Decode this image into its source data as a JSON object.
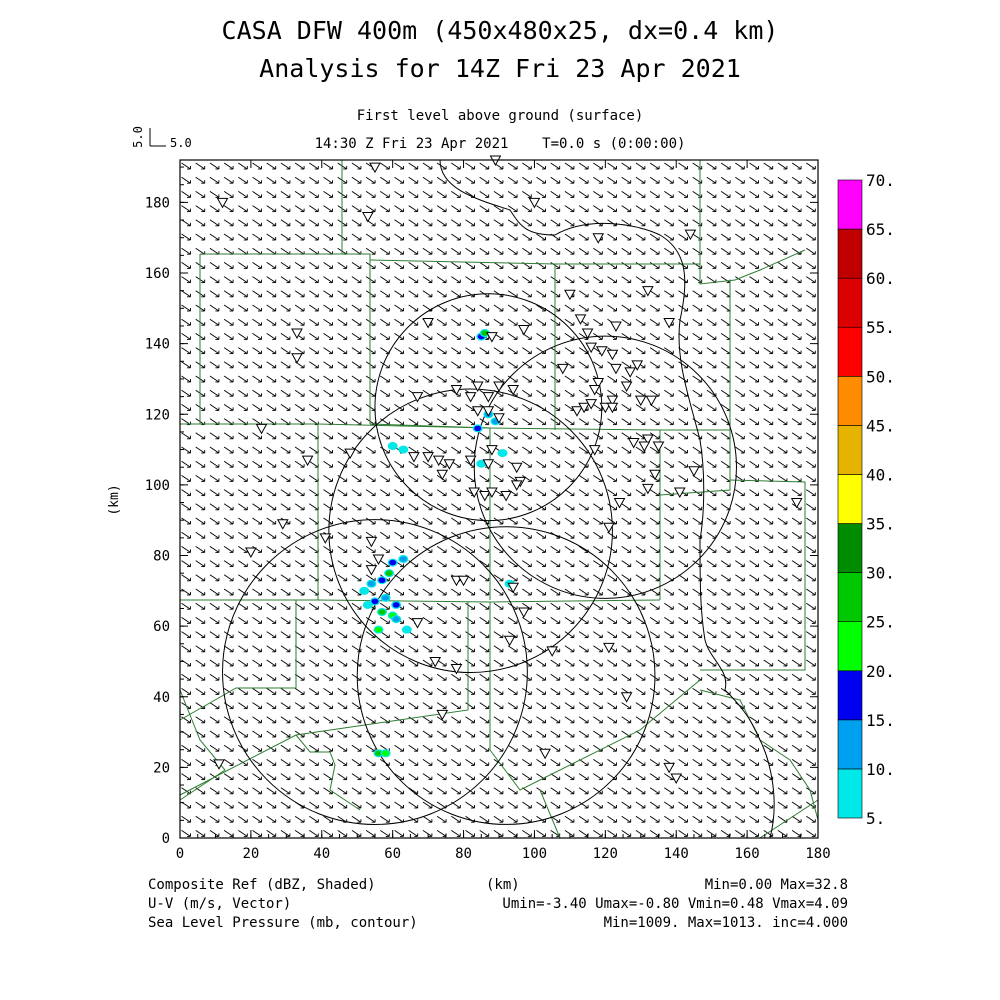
{
  "title": {
    "line1": "CASA DFW 400m (450x480x25, dx=0.4 km)",
    "line2": "Analysis for 14Z Fri 23 Apr 2021",
    "level": "First level above ground (surface)",
    "time": "14:30 Z Fri 23 Apr 2021    T=0.0 s (0:00:00)"
  },
  "vector_scale": {
    "vertical": "5.0",
    "horizontal": "5.0"
  },
  "axes": {
    "x_label": "(km)",
    "y_label": "(km)",
    "x_ticks": [
      "0",
      "20",
      "40",
      "60",
      "80",
      "100",
      "120",
      "140",
      "160",
      "180"
    ],
    "y_ticks": [
      "0",
      "20",
      "40",
      "60",
      "80",
      "100",
      "120",
      "140",
      "160",
      "180"
    ],
    "x_range": [
      0,
      180
    ],
    "y_range": [
      0,
      192
    ]
  },
  "colorbar": {
    "labels": [
      "5.",
      "10.",
      "15.",
      "20.",
      "25.",
      "30.",
      "35.",
      "40.",
      "45.",
      "50.",
      "55.",
      "60.",
      "65.",
      "70."
    ],
    "colors": [
      "#00e8e8",
      "#00a0f0",
      "#0000f0",
      "#00ff00",
      "#00c800",
      "#008c00",
      "#ffff00",
      "#e6b400",
      "#ff8c00",
      "#ff0000",
      "#dc0000",
      "#c00000",
      "#b40000",
      "#ff00ff"
    ]
  },
  "footer": {
    "ref_label": "Composite Ref (dBZ, Shaded)",
    "ref_stats": "Min=0.00 Max=32.8",
    "km_label": "(km)",
    "uv_label": "U-V (m/s, Vector)",
    "uv_stats": "Umin=-3.40 Umax=-0.80 Vmin=0.48 Vmax=4.09",
    "slp_label": "Sea Level Pressure (mb, contour)",
    "slp_stats": "Min=1009. Max=1013. inc=4.000"
  },
  "range_rings": [
    {
      "cx": 87,
      "cy": 122,
      "r": 32
    },
    {
      "cx": 120,
      "cy": 105,
      "r": 37
    },
    {
      "cx": 82,
      "cy": 87,
      "r": 40
    },
    {
      "cx": 55,
      "cy": 47,
      "r": 43
    },
    {
      "cx": 92,
      "cy": 46,
      "r": 42
    }
  ],
  "stations": [
    [
      12,
      180
    ],
    [
      55,
      190
    ],
    [
      89,
      192
    ],
    [
      100,
      180
    ],
    [
      53,
      176
    ],
    [
      118,
      170
    ],
    [
      144,
      171
    ],
    [
      33,
      143
    ],
    [
      33,
      136
    ],
    [
      70,
      146
    ],
    [
      88,
      142
    ],
    [
      97,
      144
    ],
    [
      115,
      143
    ],
    [
      108,
      133
    ],
    [
      110,
      154
    ],
    [
      132,
      155
    ],
    [
      138,
      146
    ],
    [
      123,
      145
    ],
    [
      113,
      147
    ],
    [
      116,
      139
    ],
    [
      119,
      138
    ],
    [
      122,
      137
    ],
    [
      123,
      133
    ],
    [
      127,
      132
    ],
    [
      129,
      134
    ],
    [
      118,
      129
    ],
    [
      117,
      127
    ],
    [
      126,
      128
    ],
    [
      122,
      124
    ],
    [
      130,
      124
    ],
    [
      133,
      124
    ],
    [
      112,
      121
    ],
    [
      114,
      122
    ],
    [
      116,
      123
    ],
    [
      120,
      122
    ],
    [
      122,
      122
    ],
    [
      84,
      128
    ],
    [
      90,
      128
    ],
    [
      87,
      125
    ],
    [
      82,
      125
    ],
    [
      78,
      127
    ],
    [
      94,
      127
    ],
    [
      84,
      121
    ],
    [
      87,
      121
    ],
    [
      90,
      119
    ],
    [
      67,
      125
    ],
    [
      88,
      110
    ],
    [
      66,
      108
    ],
    [
      70,
      108
    ],
    [
      73,
      107
    ],
    [
      76,
      106
    ],
    [
      82,
      107
    ],
    [
      74,
      103
    ],
    [
      87,
      106
    ],
    [
      95,
      105
    ],
    [
      96,
      101
    ],
    [
      83,
      98
    ],
    [
      86,
      97
    ],
    [
      88,
      98
    ],
    [
      92,
      97
    ],
    [
      95,
      100
    ],
    [
      128,
      112
    ],
    [
      117,
      110
    ],
    [
      132,
      113
    ],
    [
      131,
      111
    ],
    [
      135,
      111
    ],
    [
      134,
      103
    ],
    [
      132,
      99
    ],
    [
      145,
      104
    ],
    [
      141,
      98
    ],
    [
      124,
      95
    ],
    [
      121,
      88
    ],
    [
      23,
      116
    ],
    [
      36,
      107
    ],
    [
      48,
      109
    ],
    [
      29,
      89
    ],
    [
      20,
      81
    ],
    [
      41,
      85
    ],
    [
      54,
      84
    ],
    [
      56,
      79
    ],
    [
      54,
      76
    ],
    [
      78,
      73
    ],
    [
      80,
      73
    ],
    [
      94,
      71
    ],
    [
      97,
      64
    ],
    [
      67,
      61
    ],
    [
      72,
      50
    ],
    [
      78,
      48
    ],
    [
      93,
      56
    ],
    [
      105,
      53
    ],
    [
      121,
      54
    ],
    [
      126,
      40
    ],
    [
      74,
      35
    ],
    [
      103,
      24
    ],
    [
      138,
      20
    ],
    [
      140,
      17
    ],
    [
      11,
      21
    ],
    [
      174,
      95
    ]
  ],
  "echoes": [
    {
      "x": 85,
      "y": 142,
      "level": 2
    },
    {
      "x": 86,
      "y": 143,
      "level": 4
    },
    {
      "x": 87,
      "y": 120,
      "level": 1
    },
    {
      "x": 84,
      "y": 116,
      "level": 2
    },
    {
      "x": 89,
      "y": 118,
      "level": 1
    },
    {
      "x": 63,
      "y": 110,
      "level": 0
    },
    {
      "x": 60,
      "y": 111,
      "level": 0
    },
    {
      "x": 91,
      "y": 109,
      "level": 0
    },
    {
      "x": 85,
      "y": 106,
      "level": 0
    },
    {
      "x": 60,
      "y": 78,
      "level": 2
    },
    {
      "x": 63,
      "y": 79,
      "level": 1
    },
    {
      "x": 59,
      "y": 75,
      "level": 4
    },
    {
      "x": 57,
      "y": 73,
      "level": 2
    },
    {
      "x": 54,
      "y": 72,
      "level": 1
    },
    {
      "x": 52,
      "y": 70,
      "level": 0
    },
    {
      "x": 58,
      "y": 68,
      "level": 1
    },
    {
      "x": 55,
      "y": 67,
      "level": 2
    },
    {
      "x": 61,
      "y": 66,
      "level": 2
    },
    {
      "x": 60,
      "y": 63,
      "level": 3
    },
    {
      "x": 57,
      "y": 64,
      "level": 4
    },
    {
      "x": 53,
      "y": 66,
      "level": 0
    },
    {
      "x": 56,
      "y": 59,
      "level": 3
    },
    {
      "x": 64,
      "y": 59,
      "level": 0
    },
    {
      "x": 61,
      "y": 62,
      "level": 1
    },
    {
      "x": 93,
      "y": 72,
      "level": 0
    },
    {
      "x": 56,
      "y": 24,
      "level": 4
    },
    {
      "x": 58,
      "y": 24,
      "level": 3
    }
  ]
}
